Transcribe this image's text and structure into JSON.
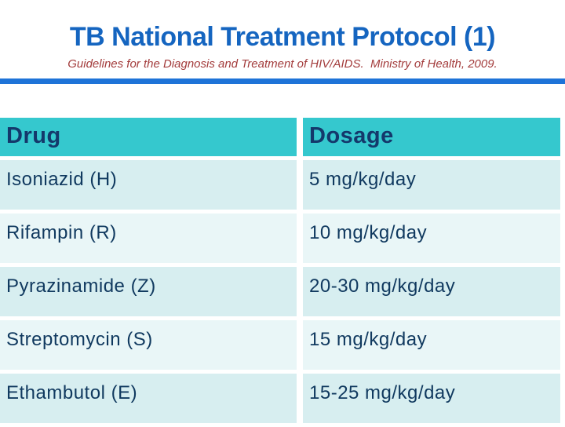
{
  "slide": {
    "title": "TB National Treatment Protocol (1)",
    "subtitle": "Guidelines for the Diagnosis and Treatment of HIV/AIDS.  Ministry of Health, 2009."
  },
  "table": {
    "headers": [
      "Drug",
      "Dosage"
    ],
    "rows": [
      {
        "drug": "Isoniazid (H)",
        "dosage": "5 mg/kg/day"
      },
      {
        "drug": "Rifampin (R)",
        "dosage": "10 mg/kg/day"
      },
      {
        "drug": "Pyrazinamide (Z)",
        "dosage": "20-30 mg/kg/day"
      },
      {
        "drug": "Streptomycin (S)",
        "dosage": "15 mg/kg/day"
      },
      {
        "drug": "Ethambutol (E)",
        "dosage": "15-25 mg/kg/day"
      }
    ]
  },
  "colors": {
    "title": "#1565C0",
    "subtitle": "#A33C3C",
    "divider_bar": "#1E73D8",
    "header_bg": "#35C8CE",
    "header_text": "#14386B",
    "body_text": "#10395F",
    "row_odd_bg": "#D7EEF0",
    "row_even_bg": "#E9F6F7"
  }
}
